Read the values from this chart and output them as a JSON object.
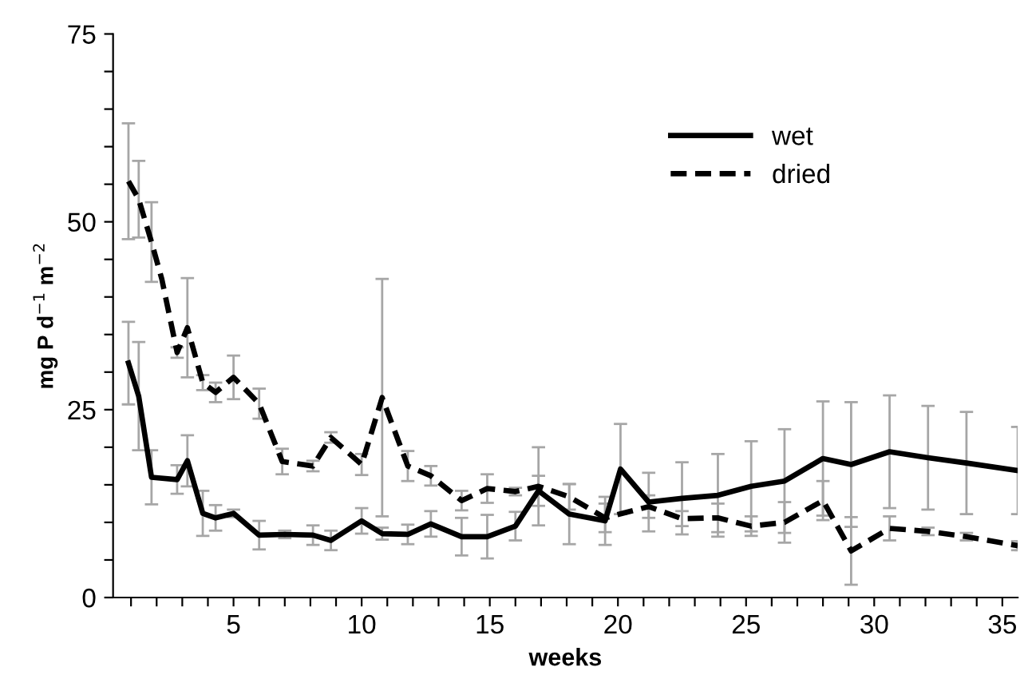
{
  "chart_data": {
    "type": "line",
    "xlabel": "weeks",
    "ylabel": "mg P d$^{−1}$ m$^{−2}$",
    "xlim": [
      0.3,
      35.6
    ],
    "ylim": [
      0,
      75
    ],
    "xticks": [
      {
        "value": 1,
        "label": null
      },
      {
        "value": 2,
        "label": null
      },
      {
        "value": 3,
        "label": null
      },
      {
        "value": 4,
        "label": null
      },
      5,
      {
        "value": 6,
        "label": null
      },
      {
        "value": 7,
        "label": null
      },
      {
        "value": 8,
        "label": null
      },
      {
        "value": 9,
        "label": null
      },
      10,
      {
        "value": 11,
        "label": null
      },
      {
        "value": 12,
        "label": null
      },
      {
        "value": 13,
        "label": null
      },
      {
        "value": 14,
        "label": null
      },
      15,
      {
        "value": 16,
        "label": null
      },
      {
        "value": 17,
        "label": null
      },
      {
        "value": 18,
        "label": null
      },
      {
        "value": 19,
        "label": null
      },
      20,
      {
        "value": 21,
        "label": null
      },
      {
        "value": 22,
        "label": null
      },
      {
        "value": 23,
        "label": null
      },
      {
        "value": 24,
        "label": null
      },
      25,
      {
        "value": 26,
        "label": null
      },
      {
        "value": 27,
        "label": null
      },
      {
        "value": 28,
        "label": null
      },
      {
        "value": 29,
        "label": null
      },
      30,
      {
        "value": 31,
        "label": null
      },
      {
        "value": 32,
        "label": null
      },
      {
        "value": 33,
        "label": null
      },
      {
        "value": 34,
        "label": null
      },
      35
    ],
    "yticks": [
      0,
      {
        "value": 5,
        "label": null
      },
      {
        "value": 10,
        "label": null
      },
      {
        "value": 15,
        "label": null
      },
      {
        "value": 20,
        "label": null
      },
      25,
      {
        "value": 30,
        "label": null
      },
      {
        "value": 35,
        "label": null
      },
      {
        "value": 40,
        "label": null
      },
      {
        "value": 45,
        "label": null
      },
      50,
      {
        "value": 55,
        "label": null
      },
      {
        "value": 60,
        "label": null
      },
      {
        "value": 65,
        "label": null
      },
      {
        "value": 70,
        "label": null
      },
      75
    ],
    "grid": false,
    "legend": "top right",
    "marker": "none",
    "series": [
      {
        "name": "wet",
        "color": "#000000",
        "line_style": "solid",
        "x": [
          0.9,
          1.3,
          1.8,
          2.8,
          3.2,
          3.8,
          4.3,
          5,
          6,
          7,
          8.1,
          8.8,
          10,
          10.8,
          11.8,
          12.7,
          13.9,
          14.9,
          16,
          16.9,
          18.1,
          19.5,
          20.1,
          21.2,
          22.5,
          23.9,
          25.2,
          26.5,
          28,
          29.1,
          30.6,
          32.1,
          33.6,
          35.6
        ],
        "values": [
          31.2,
          26.8,
          16,
          15.7,
          18.2,
          11.2,
          10.6,
          11.2,
          8.3,
          8.4,
          8.3,
          7.6,
          10.2,
          8.5,
          8.4,
          9.8,
          8.1,
          8.1,
          9.5,
          14.2,
          11.1,
          10.2,
          17.1,
          12.7,
          13.2,
          13.6,
          14.8,
          15.5,
          18.5,
          17.7,
          19.4,
          18.6,
          17.9,
          16.9
        ],
        "errors": [
          5.5,
          7.2,
          3.6,
          1.9,
          3.4,
          3,
          1.7,
          0.5,
          1.9,
          0.5,
          1.3,
          1.3,
          1.7,
          0.8,
          1.3,
          1.7,
          2.5,
          2.9,
          1.9,
          2,
          4,
          3.2,
          6,
          3.9,
          4.8,
          5.5,
          6,
          6.9,
          7.6,
          8.3,
          7.5,
          6.9,
          6.8,
          5.8
        ]
      },
      {
        "name": "dried",
        "color": "#000000",
        "line_style": "dashed",
        "x": [
          0.9,
          1.3,
          1.8,
          2.2,
          2.8,
          3.2,
          3.8,
          4.3,
          5,
          6,
          6.9,
          8.1,
          8.8,
          10,
          10.8,
          11.8,
          12.7,
          13.9,
          14.9,
          16,
          16.9,
          18.1,
          19.5,
          21.2,
          22.5,
          23.9,
          25.2,
          26.5,
          28,
          29.1,
          30.6,
          32.1,
          33.6,
          35.6
        ],
        "values": [
          55.4,
          53,
          47.3,
          42.4,
          32.6,
          35.9,
          28.6,
          27.3,
          29.3,
          25.8,
          18.1,
          17.5,
          21.3,
          17.7,
          26.6,
          17.5,
          16.2,
          12.9,
          14.5,
          14.1,
          14.8,
          13.4,
          10.6,
          12.1,
          10.5,
          10.6,
          9.5,
          10,
          12.9,
          6.2,
          9.2,
          8.8,
          8.1,
          6.9
        ],
        "errors": [
          7.7,
          5.1,
          5.3,
          null,
          0.7,
          6.6,
          1,
          1.3,
          2.9,
          2,
          1.7,
          0.7,
          0.7,
          1.4,
          15.8,
          2,
          1.3,
          1.3,
          1.9,
          0.5,
          5.2,
          1.7,
          1.9,
          1.5,
          1,
          1.9,
          1.3,
          2.7,
          2.6,
          4.5,
          1.6,
          0.5,
          0.5,
          0.6
        ]
      }
    ]
  }
}
